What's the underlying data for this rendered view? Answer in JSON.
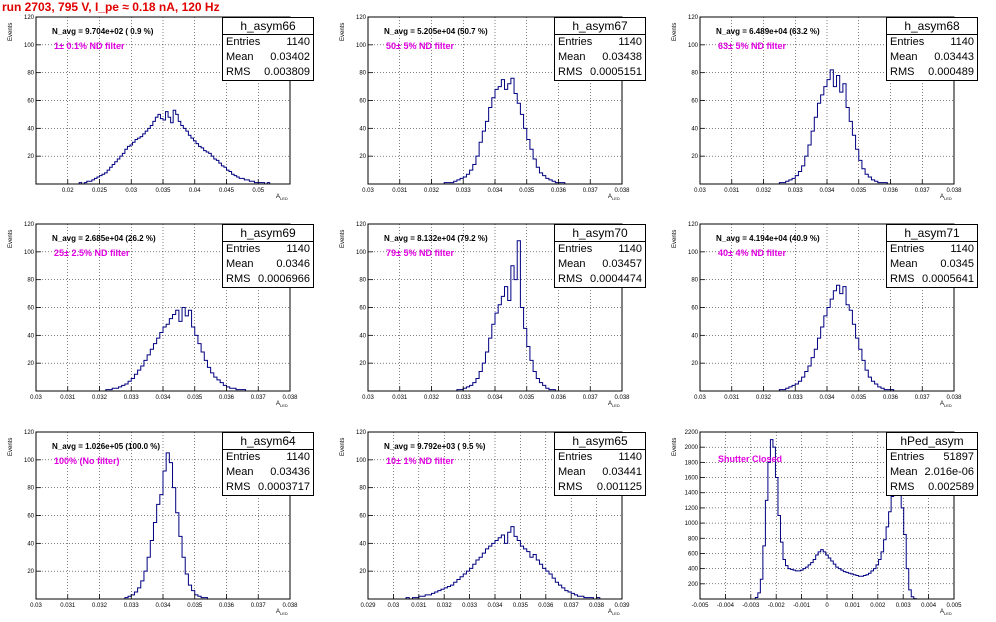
{
  "page_title": "run 2703,   795 V, I_pe ≈ 0.18 nA, 120 Hz",
  "chart_data": [
    {
      "type": "histogram",
      "title": "h_asym66",
      "navg": "N_avg = 9.704e+02 ( 0.9 %)",
      "filter_label": "1± 0.1% ND filter",
      "stats": {
        "entries": "1140",
        "mean": "0.03402",
        "rms": "0.003809"
      },
      "ylabel": "Events",
      "xlabel": "A",
      "xlabel_sub": "LED",
      "xlim": [
        0.015,
        0.055
      ],
      "ylim": [
        0,
        120
      ],
      "xticks": [
        0.02,
        0.025,
        0.03,
        0.035,
        0.04,
        0.045,
        0.05
      ],
      "xtick_labels": [
        "0.02",
        "0.025",
        "0.03",
        "0.035",
        "0.04",
        "0.045",
        "0.05"
      ],
      "yticks": [
        20,
        40,
        60,
        80,
        100,
        120
      ],
      "ytick_labels": [
        "20",
        "40",
        "60",
        "80",
        "100",
        "120"
      ],
      "bin_edges": [
        0.015,
        0.055
      ],
      "counts": [
        0,
        0,
        0,
        0,
        0,
        0,
        0,
        0,
        0,
        0,
        0,
        0,
        0,
        0,
        0,
        0,
        0,
        1,
        0,
        1,
        2,
        2,
        3,
        4,
        5,
        6,
        7,
        8,
        10,
        12,
        14,
        16,
        18,
        20,
        22,
        25,
        27,
        28,
        30,
        32,
        33,
        34,
        36,
        38,
        40,
        42,
        45,
        48,
        50,
        47,
        46,
        52,
        48,
        44,
        53,
        50,
        45,
        42,
        40,
        38,
        35,
        33,
        31,
        29,
        27,
        26,
        24,
        23,
        22,
        20,
        18,
        17,
        15,
        13,
        12,
        10,
        9,
        7,
        6,
        5,
        4,
        4,
        3,
        3,
        2,
        2,
        1,
        1,
        1,
        1,
        0,
        1,
        0,
        0,
        0,
        0,
        0,
        0,
        0,
        0
      ]
    },
    {
      "type": "histogram",
      "title": "h_asym67",
      "navg": "N_avg = 5.205e+04 (50.7 %)",
      "filter_label": "50± 5% ND filter",
      "stats": {
        "entries": "1140",
        "mean": "0.03438",
        "rms": "0.0005151"
      },
      "ylabel": "Events",
      "xlabel": "A",
      "xlabel_sub": "LED",
      "xlim": [
        0.03,
        0.038
      ],
      "ylim": [
        0,
        120
      ],
      "xticks": [
        0.03,
        0.031,
        0.032,
        0.033,
        0.034,
        0.035,
        0.036,
        0.037,
        0.038
      ],
      "xtick_labels": [
        "0.03",
        "0.031",
        "0.032",
        "0.033",
        "0.034",
        "0.035",
        "0.036",
        "0.037",
        "0.038"
      ],
      "yticks": [
        20,
        40,
        60,
        80,
        100,
        120
      ],
      "ytick_labels": [
        "20",
        "40",
        "60",
        "80",
        "100",
        "120"
      ],
      "bin_edges": [
        0.03,
        0.038
      ],
      "counts": [
        0,
        0,
        0,
        0,
        0,
        0,
        0,
        0,
        0,
        0,
        0,
        0,
        0,
        0,
        0,
        0,
        0,
        0,
        0,
        0,
        0,
        0,
        0,
        0,
        1,
        1,
        1,
        2,
        3,
        4,
        5,
        7,
        10,
        14,
        20,
        30,
        38,
        45,
        55,
        62,
        68,
        70,
        75,
        68,
        72,
        76,
        65,
        58,
        50,
        40,
        32,
        25,
        18,
        12,
        8,
        6,
        4,
        3,
        2,
        1,
        1,
        1,
        0,
        0,
        0,
        0,
        0,
        0,
        0,
        0,
        0,
        0,
        0,
        0,
        0,
        0,
        0,
        0,
        0,
        0
      ]
    },
    {
      "type": "histogram",
      "title": "h_asym68",
      "navg": "N_avg = 6.489e+04 (63.2 %)",
      "filter_label": "63± 5% ND filter",
      "stats": {
        "entries": "1140",
        "mean": "0.03443",
        "rms": "0.000489"
      },
      "ylabel": "Events",
      "xlabel": "A",
      "xlabel_sub": "LED",
      "xlim": [
        0.03,
        0.038
      ],
      "ylim": [
        0,
        120
      ],
      "xticks": [
        0.03,
        0.031,
        0.032,
        0.033,
        0.034,
        0.035,
        0.036,
        0.037,
        0.038
      ],
      "xtick_labels": [
        "0.03",
        "0.031",
        "0.032",
        "0.033",
        "0.034",
        "0.035",
        "0.036",
        "0.037",
        "0.038"
      ],
      "yticks": [
        20,
        40,
        60,
        80,
        100,
        120
      ],
      "ytick_labels": [
        "20",
        "40",
        "60",
        "80",
        "100",
        "120"
      ],
      "bin_edges": [
        0.03,
        0.038
      ],
      "counts": [
        0,
        0,
        0,
        0,
        0,
        0,
        0,
        0,
        0,
        0,
        0,
        0,
        0,
        0,
        0,
        0,
        0,
        0,
        0,
        0,
        0,
        0,
        0,
        0,
        0,
        1,
        1,
        2,
        3,
        4,
        6,
        9,
        13,
        20,
        28,
        38,
        48,
        58,
        64,
        70,
        75,
        82,
        70,
        78,
        66,
        72,
        55,
        45,
        35,
        25,
        17,
        11,
        7,
        5,
        3,
        2,
        1,
        1,
        1,
        0,
        0,
        0,
        0,
        0,
        0,
        0,
        0,
        0,
        0,
        0,
        0,
        0,
        0,
        0,
        0,
        0,
        0,
        0,
        0,
        0
      ]
    },
    {
      "type": "histogram",
      "title": "h_asym69",
      "navg": "N_avg = 2.685e+04 (26.2 %)",
      "filter_label": "25± 2.5% ND filter",
      "stats": {
        "entries": "1140",
        "mean": "0.0346",
        "rms": "0.0006966"
      },
      "ylabel": "Events",
      "xlabel": "A",
      "xlabel_sub": "LED",
      "xlim": [
        0.03,
        0.038
      ],
      "ylim": [
        0,
        120
      ],
      "xticks": [
        0.03,
        0.031,
        0.032,
        0.033,
        0.034,
        0.035,
        0.036,
        0.037,
        0.038
      ],
      "xtick_labels": [
        "0.03",
        "0.031",
        "0.032",
        "0.033",
        "0.034",
        "0.035",
        "0.036",
        "0.037",
        "0.038"
      ],
      "yticks": [
        20,
        40,
        60,
        80,
        100,
        120
      ],
      "ytick_labels": [
        "20",
        "40",
        "60",
        "80",
        "100",
        "120"
      ],
      "bin_edges": [
        0.03,
        0.038
      ],
      "counts": [
        0,
        0,
        0,
        0,
        0,
        0,
        0,
        0,
        0,
        0,
        0,
        0,
        0,
        0,
        0,
        0,
        0,
        0,
        0,
        0,
        0,
        0,
        1,
        1,
        2,
        2,
        3,
        4,
        5,
        7,
        9,
        12,
        15,
        18,
        22,
        26,
        30,
        34,
        38,
        42,
        46,
        48,
        52,
        55,
        58,
        50,
        60,
        54,
        58,
        46,
        40,
        34,
        28,
        22,
        17,
        13,
        10,
        8,
        6,
        4,
        3,
        2,
        2,
        1,
        1,
        1,
        0,
        0,
        0,
        0,
        0,
        0,
        0,
        0,
        0,
        0,
        0,
        0,
        0,
        0
      ]
    },
    {
      "type": "histogram",
      "title": "h_asym70",
      "navg": "N_avg = 8.132e+04 (79.2 %)",
      "filter_label": "79± 5% ND filter",
      "stats": {
        "entries": "1140",
        "mean": "0.03457",
        "rms": "0.0004474"
      },
      "ylabel": "Events",
      "xlabel": "A",
      "xlabel_sub": "LED",
      "xlim": [
        0.03,
        0.038
      ],
      "ylim": [
        0,
        120
      ],
      "xticks": [
        0.03,
        0.031,
        0.032,
        0.033,
        0.034,
        0.035,
        0.036,
        0.037,
        0.038
      ],
      "xtick_labels": [
        "0.03",
        "0.031",
        "0.032",
        "0.033",
        "0.034",
        "0.035",
        "0.036",
        "0.037",
        "0.038"
      ],
      "yticks": [
        20,
        40,
        60,
        80,
        100,
        120
      ],
      "ytick_labels": [
        "20",
        "40",
        "60",
        "80",
        "100",
        "120"
      ],
      "bin_edges": [
        0.03,
        0.038
      ],
      "counts": [
        0,
        0,
        0,
        0,
        0,
        0,
        0,
        0,
        0,
        0,
        0,
        0,
        0,
        0,
        0,
        0,
        0,
        0,
        0,
        0,
        0,
        0,
        0,
        0,
        0,
        0,
        0,
        0,
        1,
        1,
        2,
        3,
        4,
        6,
        9,
        14,
        20,
        28,
        38,
        48,
        56,
        62,
        68,
        75,
        65,
        90,
        80,
        108,
        60,
        45,
        32,
        22,
        14,
        9,
        6,
        4,
        2,
        1,
        1,
        0,
        0,
        0,
        0,
        0,
        0,
        0,
        0,
        0,
        0,
        0,
        0,
        0,
        0,
        0,
        0,
        0,
        0,
        0,
        0,
        0
      ]
    },
    {
      "type": "histogram",
      "title": "h_asym71",
      "navg": "N_avg = 4.194e+04 (40.9 %)",
      "filter_label": "40± 4% ND filter",
      "stats": {
        "entries": "1140",
        "mean": "0.0345",
        "rms": "0.0005641"
      },
      "ylabel": "Events",
      "xlabel": "A",
      "xlabel_sub": "LED",
      "xlim": [
        0.03,
        0.038
      ],
      "ylim": [
        0,
        120
      ],
      "xticks": [
        0.03,
        0.031,
        0.032,
        0.033,
        0.034,
        0.035,
        0.036,
        0.037,
        0.038
      ],
      "xtick_labels": [
        "0.03",
        "0.031",
        "0.032",
        "0.033",
        "0.034",
        "0.035",
        "0.036",
        "0.037",
        "0.038"
      ],
      "yticks": [
        20,
        40,
        60,
        80,
        100,
        120
      ],
      "ytick_labels": [
        "20",
        "40",
        "60",
        "80",
        "100",
        "120"
      ],
      "bin_edges": [
        0.03,
        0.038
      ],
      "counts": [
        0,
        0,
        0,
        0,
        0,
        0,
        0,
        0,
        0,
        0,
        0,
        0,
        0,
        0,
        0,
        0,
        0,
        0,
        0,
        0,
        0,
        0,
        0,
        0,
        0,
        1,
        1,
        2,
        3,
        4,
        5,
        7,
        10,
        14,
        18,
        24,
        30,
        38,
        46,
        54,
        60,
        66,
        72,
        76,
        70,
        75,
        62,
        58,
        48,
        38,
        30,
        22,
        15,
        10,
        7,
        5,
        3,
        2,
        1,
        1,
        1,
        0,
        0,
        0,
        0,
        0,
        0,
        0,
        0,
        0,
        0,
        0,
        0,
        0,
        0,
        0,
        0,
        0,
        0,
        0
      ]
    },
    {
      "type": "histogram",
      "title": "h_asym64",
      "navg": "N_avg = 1.026e+05 (100.0 %)",
      "filter_label": "100% (No filter)",
      "stats": {
        "entries": "1140",
        "mean": "0.03436",
        "rms": "0.0003717"
      },
      "ylabel": "Events",
      "xlabel": "A",
      "xlabel_sub": "LED",
      "xlim": [
        0.03,
        0.038
      ],
      "ylim": [
        0,
        120
      ],
      "xticks": [
        0.03,
        0.031,
        0.032,
        0.033,
        0.034,
        0.035,
        0.036,
        0.037,
        0.038
      ],
      "xtick_labels": [
        "0.03",
        "0.031",
        "0.032",
        "0.033",
        "0.034",
        "0.035",
        "0.036",
        "0.037",
        "0.038"
      ],
      "yticks": [
        20,
        40,
        60,
        80,
        100,
        120
      ],
      "ytick_labels": [
        "20",
        "40",
        "60",
        "80",
        "100",
        "120"
      ],
      "bin_edges": [
        0.03,
        0.038
      ],
      "counts": [
        0,
        0,
        0,
        0,
        0,
        0,
        0,
        0,
        0,
        0,
        0,
        0,
        0,
        0,
        0,
        0,
        0,
        0,
        0,
        0,
        0,
        0,
        0,
        0,
        0,
        0,
        0,
        0,
        1,
        2,
        3,
        5,
        8,
        13,
        20,
        30,
        42,
        55,
        68,
        75,
        92,
        105,
        98,
        80,
        62,
        45,
        30,
        18,
        10,
        6,
        3,
        2,
        1,
        1,
        0,
        0,
        0,
        0,
        0,
        0,
        0,
        0,
        0,
        0,
        0,
        0,
        0,
        0,
        0,
        0,
        0,
        0,
        0,
        0,
        0,
        0,
        0,
        0,
        0,
        0
      ]
    },
    {
      "type": "histogram",
      "title": "h_asym65",
      "navg": "N_avg = 9.792e+03 ( 9.5 %)",
      "filter_label": "10± 1% ND filter",
      "stats": {
        "entries": "1140",
        "mean": "0.03441",
        "rms": "0.001125"
      },
      "ylabel": "Events",
      "xlabel": "A",
      "xlabel_sub": "LED",
      "xlim": [
        0.029,
        0.039
      ],
      "ylim": [
        0,
        120
      ],
      "xticks": [
        0.029,
        0.03,
        0.031,
        0.032,
        0.033,
        0.034,
        0.035,
        0.036,
        0.037,
        0.038,
        0.039
      ],
      "xtick_labels": [
        "0.029",
        "0.03",
        "0.031",
        "0.032",
        "0.033",
        "0.034",
        "0.035",
        "0.036",
        "0.037",
        "0.038",
        "0.039"
      ],
      "yticks": [
        20,
        40,
        60,
        80,
        100,
        120
      ],
      "ytick_labels": [
        "20",
        "40",
        "60",
        "80",
        "100",
        "120"
      ],
      "bin_edges": [
        0.029,
        0.039
      ],
      "counts": [
        0,
        0,
        0,
        0,
        0,
        0,
        0,
        0,
        0,
        0,
        0,
        0,
        1,
        0,
        1,
        1,
        2,
        2,
        3,
        3,
        4,
        5,
        6,
        7,
        8,
        9,
        10,
        12,
        14,
        16,
        18,
        20,
        22,
        25,
        28,
        30,
        33,
        36,
        38,
        40,
        42,
        44,
        46,
        40,
        48,
        52,
        45,
        42,
        38,
        36,
        34,
        30,
        32,
        28,
        25,
        22,
        20,
        18,
        15,
        12,
        10,
        8,
        6,
        5,
        4,
        3,
        2,
        2,
        1,
        1,
        1,
        0,
        1,
        0,
        0,
        0,
        0,
        0,
        0,
        0
      ]
    },
    {
      "type": "histogram",
      "title": "hPed_asym",
      "navg": "",
      "filter_label": "Shutter Closed",
      "stats": {
        "entries": "51897",
        "mean": "2.016e-06",
        "rms": "0.002589"
      },
      "ylabel": "Events",
      "xlabel": "A",
      "xlabel_sub": "LED",
      "xlim": [
        -0.005,
        0.005
      ],
      "ylim": [
        0,
        2200
      ],
      "xticks": [
        -0.005,
        -0.004,
        -0.003,
        -0.002,
        -0.001,
        0,
        0.001,
        0.002,
        0.003,
        0.004,
        0.005
      ],
      "xtick_labels": [
        "-0.005",
        "-0.004",
        "-0.003",
        "-0.002",
        "-0.001",
        "0",
        "0.001",
        "0.002",
        "0.003",
        "0.004",
        "0.005"
      ],
      "yticks": [
        200,
        400,
        600,
        800,
        1000,
        1200,
        1400,
        1600,
        1800,
        2000,
        2200
      ],
      "ytick_labels": [
        "200",
        "400",
        "600",
        "800",
        "1000",
        "1200",
        "1400",
        "1600",
        "1800",
        "2000",
        "2200"
      ],
      "bin_edges": [
        -0.005,
        0.005
      ],
      "counts": [
        0,
        0,
        0,
        0,
        0,
        0,
        0,
        0,
        0,
        0,
        0,
        0,
        0,
        0,
        0,
        0,
        0,
        0,
        0,
        0,
        0,
        0,
        20,
        80,
        260,
        700,
        1300,
        1800,
        2100,
        2000,
        1600,
        1100,
        750,
        520,
        440,
        400,
        390,
        380,
        370,
        370,
        380,
        400,
        420,
        450,
        480,
        520,
        580,
        620,
        650,
        620,
        580,
        540,
        500,
        460,
        420,
        400,
        380,
        360,
        350,
        340,
        330,
        320,
        310,
        300,
        300,
        310,
        320,
        340,
        370,
        400,
        450,
        520,
        620,
        780,
        950,
        1150,
        1350,
        1450,
        1480,
        1420,
        1200,
        850,
        400,
        120,
        30,
        5,
        0,
        0,
        0,
        0,
        0,
        0,
        0,
        0,
        0,
        0,
        0,
        0,
        0,
        0,
        0
      ]
    }
  ]
}
